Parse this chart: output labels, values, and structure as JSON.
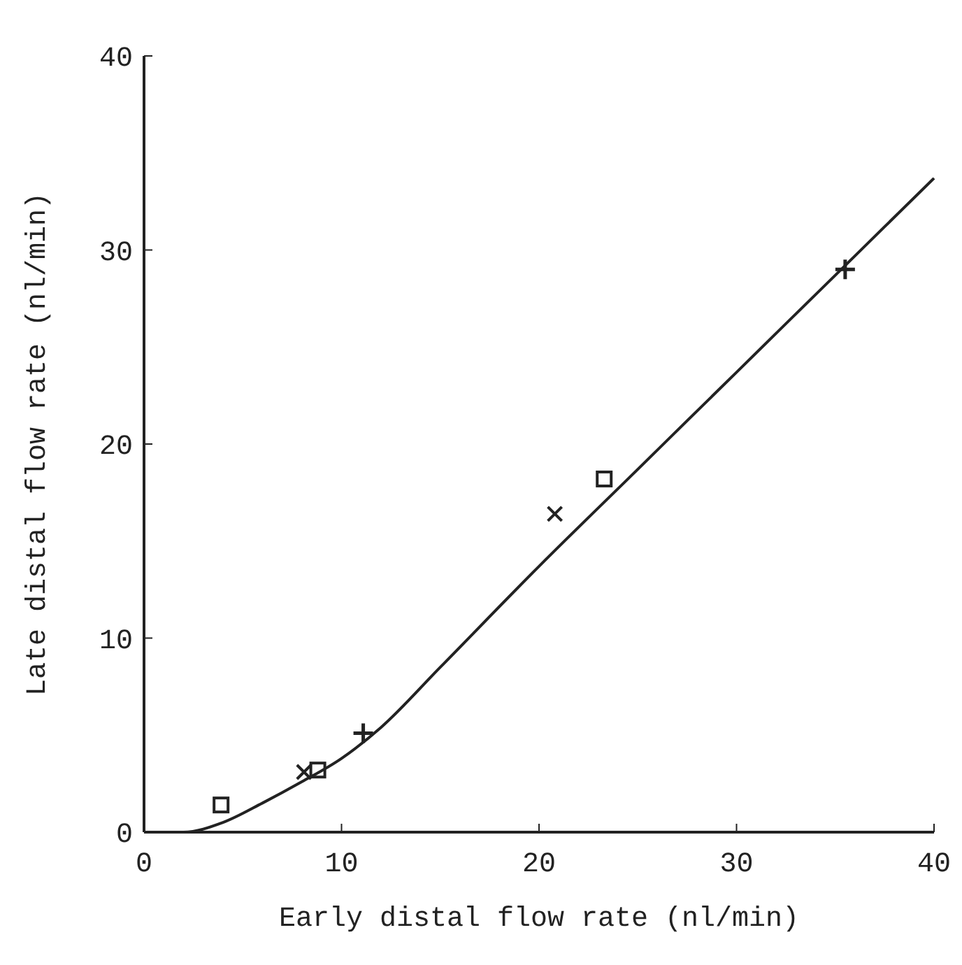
{
  "chart_data": {
    "type": "scatter",
    "xlabel": "Early distal flow rate (nl/min)",
    "ylabel": "Late distal flow rate (nl/min)",
    "xlim": [
      0,
      40
    ],
    "ylim": [
      0,
      40
    ],
    "xticks": [
      0,
      10,
      20,
      30,
      40
    ],
    "yticks": [
      0,
      10,
      20,
      30,
      40
    ],
    "grid": false,
    "series": [
      {
        "marker": "square",
        "color": "#222222",
        "x": [
          3.9,
          8.8,
          23.3
        ],
        "values": [
          1.4,
          3.2,
          18.2
        ]
      },
      {
        "marker": "cross",
        "color": "#222222",
        "x": [
          8.1,
          20.8
        ],
        "values": [
          3.1,
          16.4
        ]
      },
      {
        "marker": "plus",
        "color": "#222222",
        "x": [
          11.1,
          35.5
        ],
        "values": [
          5.1,
          29
        ]
      },
      {
        "type": "line",
        "marker": "none",
        "line_style": "solid",
        "color": "#222222",
        "x": [
          0,
          2,
          4,
          6,
          8,
          10,
          12,
          15,
          20,
          25,
          30,
          35,
          40
        ],
        "values": [
          0,
          0,
          0.5,
          1.5,
          2.6,
          3.8,
          5.4,
          8.5,
          13.7,
          18.7,
          23.7,
          28.7,
          33.7
        ]
      }
    ]
  }
}
